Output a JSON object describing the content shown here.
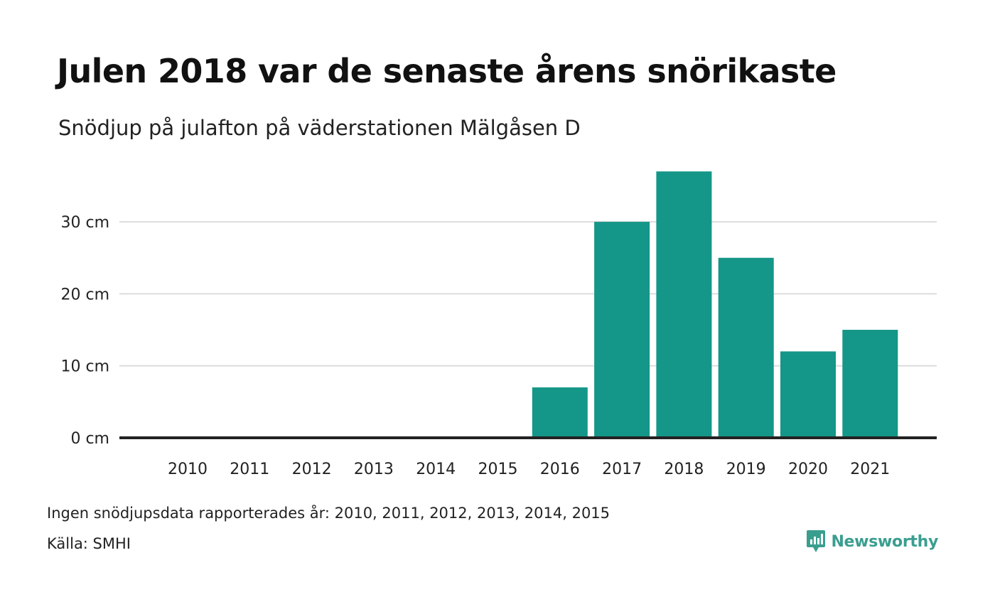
{
  "colors": {
    "bar": "#149688",
    "gridline": "#dddddd",
    "baseline": "#222222",
    "brand": "#3a9e8f"
  },
  "chart_data": {
    "type": "bar",
    "title": "Julen 2018 var de senaste årens snörikaste",
    "subtitle": "Snödjup på julafton på väderstationen Mälgåsen D",
    "categories": [
      "2010",
      "2011",
      "2012",
      "2013",
      "2014",
      "2015",
      "2016",
      "2017",
      "2018",
      "2019",
      "2020",
      "2021"
    ],
    "values": [
      null,
      null,
      null,
      null,
      null,
      null,
      7,
      30,
      37,
      25,
      12,
      15
    ],
    "yticks": [
      {
        "value": 0,
        "label": "0 cm"
      },
      {
        "value": 10,
        "label": "10 cm"
      },
      {
        "value": 20,
        "label": "20 cm"
      },
      {
        "value": 30,
        "label": "30 cm"
      }
    ],
    "ylim": [
      0,
      37
    ],
    "grid": true,
    "legend": false
  },
  "footnote": "Ingen snödjupsdata rapporterades år: 2010, 2011, 2012, 2013, 2014, 2015",
  "source": "Källa: SMHI",
  "brand": {
    "name": "Newsworthy",
    "icon": "newsworthy-logo-icon"
  }
}
